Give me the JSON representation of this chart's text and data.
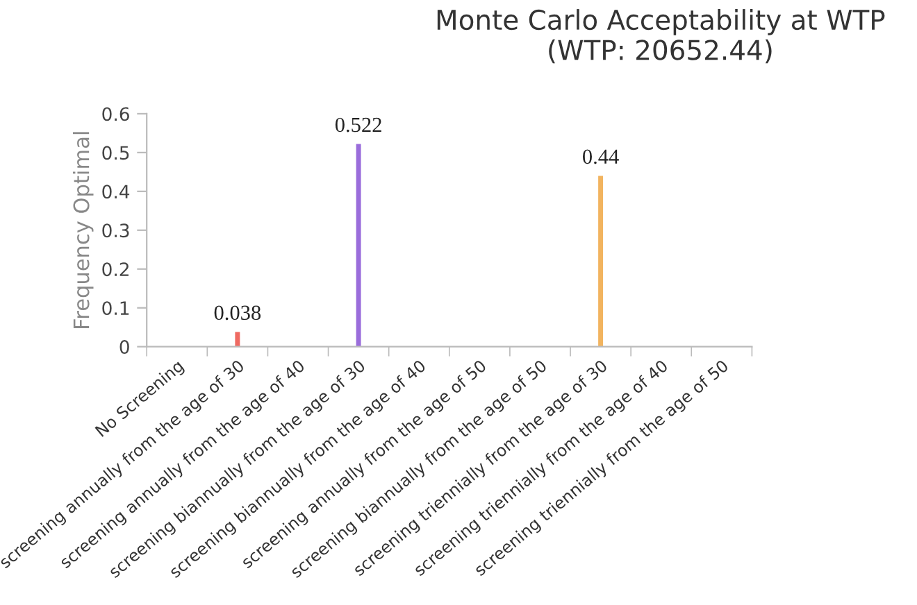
{
  "chart_data": {
    "type": "bar",
    "title": "Monte Carlo Acceptability at WTP\n(WTP: 20652.44)",
    "ylabel": "Frequency Optimal",
    "categories": [
      "No Screening",
      "screening annually from the age of 30",
      "screening annually from the age of 40",
      "screening biannually from the age of 30",
      "screening biannually from the age of 40",
      "screening annually from the age of 50",
      "screening biannually from the age of 50",
      "screening triennially from the age of 30",
      "screening triennially from the age of 40",
      "screening triennially from the age of 50"
    ],
    "values": [
      0,
      0.038,
      0,
      0.522,
      0,
      0,
      0,
      0.44,
      0,
      0
    ],
    "value_labels": [
      null,
      "0.038",
      null,
      "0.522",
      null,
      null,
      null,
      "0.44",
      null,
      null
    ],
    "colors": [
      "#5fb4f5",
      "#ef6a62",
      "#d4b83a",
      "#9a6ddb",
      "#3fa1a6",
      "#8acd5a",
      "#9e2f73",
      "#f2b45f",
      "#bdbdbd",
      "#bdbdbd"
    ],
    "ylim": [
      0,
      0.6
    ],
    "yticks": [
      0,
      0.1,
      0.2,
      0.3,
      0.4,
      0.5,
      0.6
    ],
    "grid": false,
    "legend": false
  }
}
